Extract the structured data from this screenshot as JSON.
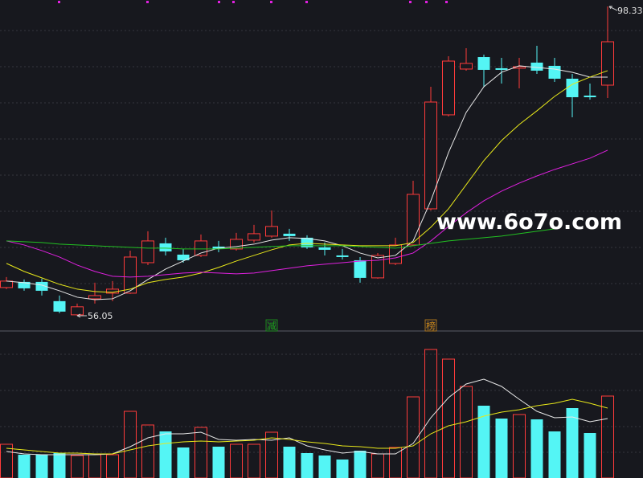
{
  "chart_data": {
    "type": "candlestick",
    "up_color": "#ff3b3b",
    "down_color": "#54f5f5",
    "ylim": [
      54.18,
      99.21
    ],
    "y2lim": [
      0,
      182
    ],
    "open": [
      59.9,
      60.67,
      60.67,
      58.04,
      56.17,
      58.36,
      59.13,
      59.13,
      63.3,
      65.94,
      64.4,
      64.29,
      65.5,
      65.17,
      66.38,
      66.93,
      67.26,
      66.71,
      65.39,
      64.29,
      63.63,
      61.22,
      63.19,
      65.72,
      70.66,
      83.51,
      89.77,
      91.41,
      89.88,
      89.88,
      90.65,
      90.21,
      88.45,
      86.14,
      87.57
    ],
    "close": [
      60.78,
      59.79,
      59.46,
      56.61,
      57.27,
      58.8,
      59.68,
      64.07,
      66.27,
      64.84,
      63.63,
      66.27,
      65.17,
      66.49,
      67.26,
      68.25,
      66.93,
      65.39,
      65.06,
      64.07,
      61.22,
      64.29,
      65.72,
      72.64,
      85.26,
      90.86,
      90.54,
      89.66,
      89.66,
      90.1,
      89.55,
      88.45,
      85.92,
      85.92,
      93.5
    ],
    "high": [
      61.33,
      61.0,
      61.11,
      58.8,
      57.71,
      60.56,
      60.78,
      64.95,
      67.59,
      66.71,
      65.17,
      67.15,
      66.27,
      67.37,
      68.47,
      70.44,
      67.92,
      67.04,
      66.05,
      65.17,
      64.07,
      64.62,
      66.71,
      74.5,
      87.35,
      91.52,
      92.62,
      91.74,
      91.3,
      91.3,
      92.95,
      91.3,
      89.11,
      87.79,
      98.33
    ],
    "low": [
      59.68,
      59.46,
      58.8,
      56.39,
      56.05,
      57.71,
      58.04,
      59.02,
      62.97,
      64.29,
      63.3,
      64.07,
      64.73,
      64.95,
      66.05,
      66.71,
      66.27,
      65.17,
      64.29,
      63.74,
      60.56,
      61.11,
      62.97,
      65.61,
      70.44,
      83.29,
      89.55,
      87.35,
      87.79,
      87.13,
      89.11,
      88.01,
      83.18,
      85.59,
      85.81
    ],
    "ma_lines": [
      {
        "color": "#e8e8e8",
        "values": [
          60.78,
          60.56,
          60.23,
          59.46,
          58.58,
          58.25,
          58.36,
          59.46,
          61.0,
          62.43,
          63.52,
          64.62,
          65.28,
          65.5,
          65.83,
          66.38,
          66.71,
          66.6,
          66.27,
          65.61,
          64.62,
          63.96,
          64.29,
          66.27,
          71.76,
          78.35,
          83.84,
          87.35,
          89.33,
          90.21,
          89.99,
          89.77,
          89.33,
          88.67,
          88.67
        ]
      },
      {
        "color": "#e8e81a",
        "values": [
          63.2,
          62.1,
          61.22,
          60.34,
          59.68,
          59.35,
          59.24,
          59.68,
          60.56,
          61.0,
          61.33,
          61.88,
          62.65,
          63.52,
          64.29,
          65.06,
          65.72,
          65.94,
          65.83,
          65.72,
          65.61,
          65.61,
          65.61,
          66.05,
          68.14,
          70.66,
          73.96,
          77.25,
          79.99,
          82.19,
          84.06,
          86.03,
          87.68,
          88.67,
          89.55
        ]
      },
      {
        "color": "#e020e0",
        "values": [
          66.27,
          65.72,
          64.95,
          64.07,
          62.97,
          62.1,
          61.44,
          61.33,
          61.44,
          61.66,
          61.88,
          61.99,
          61.88,
          61.77,
          61.88,
          62.21,
          62.54,
          62.87,
          63.09,
          63.3,
          63.52,
          63.63,
          63.96,
          64.62,
          66.27,
          68.25,
          70.11,
          71.76,
          73.08,
          74.18,
          75.16,
          76.04,
          76.81,
          77.58,
          78.68
        ]
      },
      {
        "color": "#22c022",
        "values": [
          66.27,
          66.16,
          66.05,
          65.83,
          65.72,
          65.61,
          65.5,
          65.39,
          65.28,
          65.28,
          65.17,
          65.17,
          65.17,
          65.28,
          65.39,
          65.5,
          65.61,
          65.61,
          65.61,
          65.61,
          65.5,
          65.39,
          65.28,
          65.61,
          65.94,
          66.27,
          66.49,
          66.71,
          66.93,
          67.26,
          67.59,
          67.92,
          null,
          null,
          null
        ]
      }
    ],
    "volume": [
      42,
      29,
      29,
      31,
      28,
      29,
      29,
      83,
      66,
      58,
      38,
      63,
      39,
      42,
      42,
      57,
      39,
      31,
      28,
      23,
      34,
      30,
      38,
      101,
      160,
      148,
      114,
      90,
      74,
      79,
      73,
      58,
      87,
      56,
      102
    ],
    "volume_ma_lines": [
      {
        "color": "#e8e8e8",
        "values": [
          33,
          30,
          29,
          29,
          29,
          29,
          30,
          39,
          50,
          55,
          55,
          57,
          48,
          47,
          48,
          47,
          50,
          40,
          35,
          31,
          33,
          30,
          30,
          43,
          75,
          100,
          117,
          123,
          114,
          98,
          83,
          75,
          76,
          70,
          74
        ]
      },
      {
        "color": "#e8e81a",
        "values": [
          37,
          35,
          33,
          31,
          31,
          30,
          30,
          35,
          40,
          43,
          45,
          46,
          45,
          46,
          47,
          50,
          48,
          45,
          43,
          40,
          39,
          37,
          37,
          40,
          55,
          65,
          70,
          77,
          82,
          85,
          90,
          93,
          98,
          93,
          87
        ]
      }
    ],
    "markers": [
      {
        "text": "减",
        "index": 15,
        "color": "#1aa01a"
      },
      {
        "text": "榜",
        "index": 24,
        "color": "#c8861a"
      }
    ],
    "watermark": "www.6o7o.com"
  }
}
